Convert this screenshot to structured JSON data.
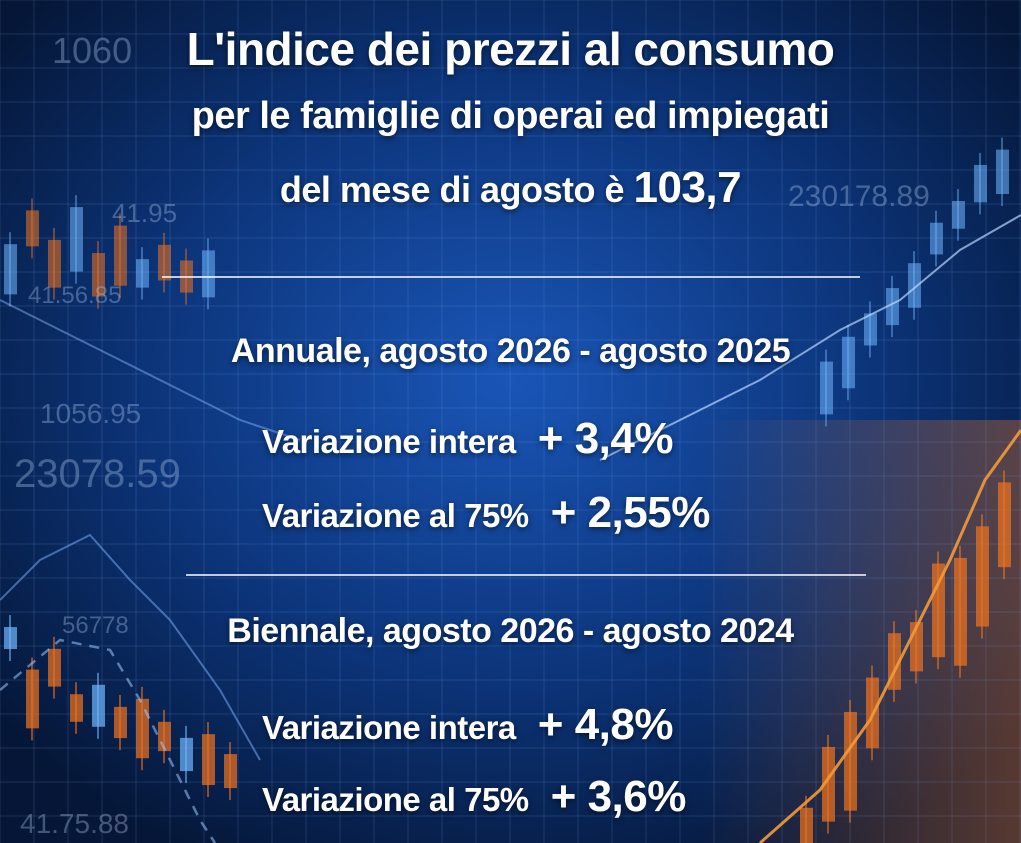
{
  "title": {
    "line1": "L'indice dei prezzi al consumo",
    "line2": "per le famiglie di operai ed impiegati",
    "line3_prefix": "del mese di agosto è ",
    "line3_value": "103,7"
  },
  "annual": {
    "heading": "Annuale, agosto 2026 - agosto 2025",
    "rows": [
      {
        "label": "Variazione intera",
        "value": "+ 3,4%"
      },
      {
        "label": "Variazione al 75%",
        "value": "+ 2,55%"
      }
    ]
  },
  "biennial": {
    "heading": "Biennale, agosto 2026 - agosto 2024",
    "rows": [
      {
        "label": "Variazione intera",
        "value": "+ 4,8%"
      },
      {
        "label": "Variazione al 75%",
        "value": "+ 3,6%"
      }
    ]
  },
  "background_numbers": [
    "230178.89",
    "1056.95",
    "23078.59",
    "41.56.85",
    "41.75.88",
    "56778",
    "1060",
    "41.95"
  ],
  "colors": {
    "background_dark": "#061a44",
    "background_mid": "#0d3a86",
    "candle_orange": "#f0741f",
    "candle_blue": "#6fb6ff",
    "text": "#ffffff"
  },
  "icons": [
    "stock-chart-background"
  ]
}
